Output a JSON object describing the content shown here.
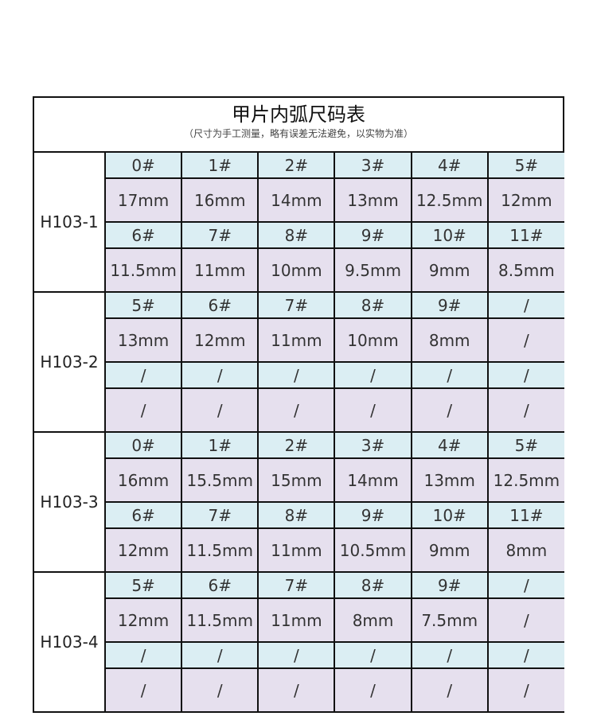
{
  "title": "甲片内弧尺码表",
  "subtitle": "（尺寸为手工测量，略有误差无法避免，以实物为准）",
  "colors": {
    "size_row": "#dbeef3",
    "value_row": "#e6e0ee",
    "border": "#111111"
  },
  "groups": [
    {
      "model": "H103-1",
      "rows": [
        {
          "sizes": [
            "0#",
            "1#",
            "2#",
            "3#",
            "4#",
            "5#"
          ],
          "values": [
            "17mm",
            "16mm",
            "14mm",
            "13mm",
            "12.5mm",
            "12mm"
          ]
        },
        {
          "sizes": [
            "6#",
            "7#",
            "8#",
            "9#",
            "10#",
            "11#"
          ],
          "values": [
            "11.5mm",
            "11mm",
            "10mm",
            "9.5mm",
            "9mm",
            "8.5mm"
          ]
        }
      ]
    },
    {
      "model": "H103-2",
      "rows": [
        {
          "sizes": [
            "5#",
            "6#",
            "7#",
            "8#",
            "9#",
            "/"
          ],
          "values": [
            "13mm",
            "12mm",
            "11mm",
            "10mm",
            "8mm",
            "/"
          ]
        },
        {
          "sizes": [
            "/",
            "/",
            "/",
            "/",
            "/",
            "/"
          ],
          "values": [
            "/",
            "/",
            "/",
            "/",
            "/",
            "/"
          ]
        }
      ]
    },
    {
      "model": "H103-3",
      "rows": [
        {
          "sizes": [
            "0#",
            "1#",
            "2#",
            "3#",
            "4#",
            "5#"
          ],
          "values": [
            "16mm",
            "15.5mm",
            "15mm",
            "14mm",
            "13mm",
            "12.5mm"
          ]
        },
        {
          "sizes": [
            "6#",
            "7#",
            "8#",
            "9#",
            "10#",
            "11#"
          ],
          "values": [
            "12mm",
            "11.5mm",
            "11mm",
            "10.5mm",
            "9mm",
            "8mm"
          ]
        }
      ]
    },
    {
      "model": "H103-4",
      "rows": [
        {
          "sizes": [
            "5#",
            "6#",
            "7#",
            "8#",
            "9#",
            "/"
          ],
          "values": [
            "12mm",
            "11.5mm",
            "11mm",
            "8mm",
            "7.5mm",
            "/"
          ]
        },
        {
          "sizes": [
            "/",
            "/",
            "/",
            "/",
            "/",
            "/"
          ],
          "values": [
            "/",
            "/",
            "/",
            "/",
            "/",
            "/"
          ]
        }
      ]
    }
  ]
}
